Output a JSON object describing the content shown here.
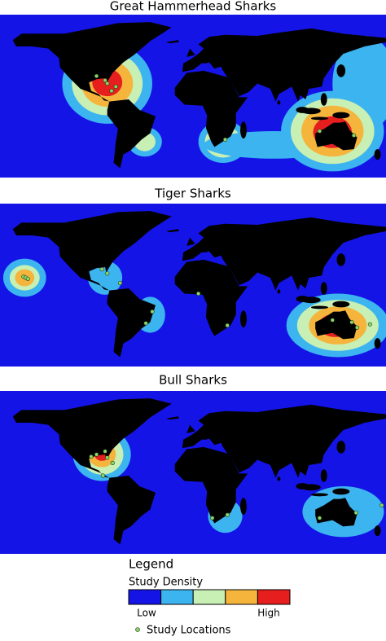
{
  "panels": [
    {
      "title": "Great Hammerhead Sharks"
    },
    {
      "title": "Tiger Sharks"
    },
    {
      "title": "Bull Sharks"
    }
  ],
  "legend": {
    "title": "Legend",
    "density_label": "Study Density",
    "density_colors": [
      "#1414e6",
      "#3cb4f0",
      "#c8f0b4",
      "#f5b43c",
      "#e61e1e"
    ],
    "low": "Low",
    "high": "High",
    "locations_label": "Study Locations",
    "location_color": "#8ed66b"
  }
}
